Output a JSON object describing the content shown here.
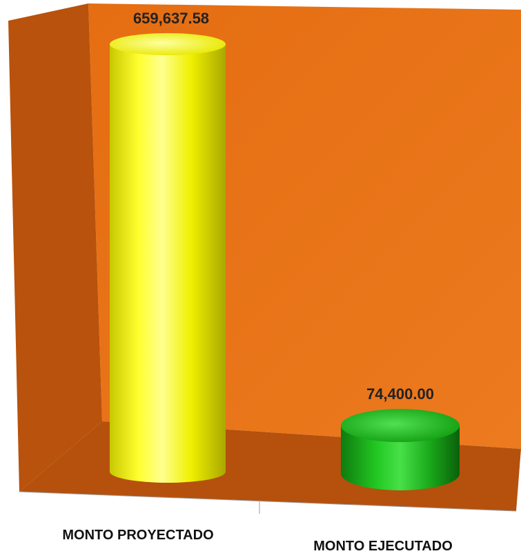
{
  "chart_data": {
    "type": "bar",
    "style": "3d-cylinder",
    "categories": [
      "MONTO PROYECTADO",
      "MONTO EJECUTADO"
    ],
    "values": [
      659637.58,
      74400.0
    ],
    "data_labels": [
      "659,637.58",
      "74,400.00"
    ],
    "bar_colors": [
      "#ffff00",
      "#18b818"
    ],
    "wall_color": "#e8701a",
    "side_wall_color": "#b8520c",
    "floor_color": "#b8520c",
    "title": "",
    "xlabel": "",
    "ylabel": "",
    "ylim": [
      0,
      659637.58
    ],
    "grid": false,
    "legend": "none"
  }
}
